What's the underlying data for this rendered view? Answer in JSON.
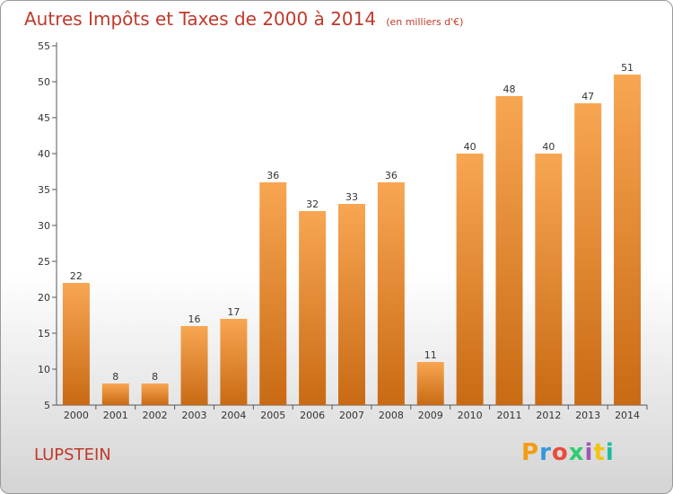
{
  "header": {
    "title": "Autres Impôts et Taxes de 2000 à 2014",
    "unit": "(en milliers d'€)"
  },
  "footer": {
    "commune": "LUPSTEIN",
    "logo": "Proxiti",
    "logo_colors": [
      "#f39c12",
      "#3498db",
      "#e74c3c",
      "#2ecc71",
      "#9b59b6",
      "#f1c40f",
      "#1abc9c"
    ]
  },
  "colors": {
    "title": "#c0392b",
    "bar_top": "#f8a652",
    "bar_bottom": "#c96a14",
    "axis": "#555555",
    "grid": "#dddddd"
  },
  "chart_data": {
    "type": "bar",
    "title": "Autres Impôts et Taxes de 2000 à 2014",
    "subtitle": "(en milliers d'€)",
    "categories": [
      "2000",
      "2001",
      "2002",
      "2003",
      "2004",
      "2005",
      "2006",
      "2007",
      "2008",
      "2009",
      "2010",
      "2011",
      "2012",
      "2013",
      "2014"
    ],
    "values": [
      22,
      8,
      8,
      16,
      17,
      36,
      32,
      33,
      36,
      11,
      40,
      48,
      40,
      47,
      51
    ],
    "ylim": [
      5,
      55
    ],
    "yticks": [
      5,
      10,
      15,
      20,
      25,
      30,
      35,
      40,
      45,
      50,
      55
    ],
    "grid": false,
    "legend": "none"
  }
}
